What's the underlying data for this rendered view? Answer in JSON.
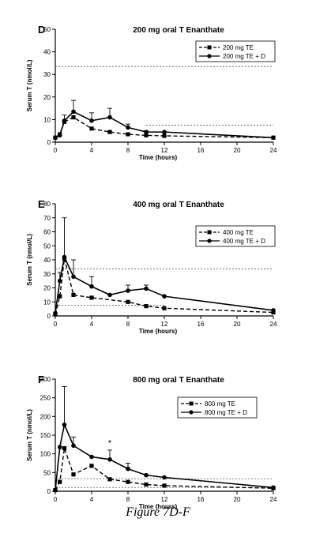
{
  "figure": {
    "caption": "Figure 7D-F"
  },
  "chart_data": [
    {
      "type": "line",
      "panel_letter": "D",
      "title": "200 mg oral T Enanthate",
      "xlabel": "Time (hours)",
      "ylabel": "Serum T (nmol/L)",
      "xlim": [
        0,
        24
      ],
      "ylim": [
        0,
        50
      ],
      "xticks": [
        0,
        4,
        8,
        12,
        16,
        20,
        24
      ],
      "yticks": [
        0,
        10,
        20,
        30,
        40,
        50
      ],
      "legend_position": "top-right",
      "reference_lines": [
        {
          "y": 33.5,
          "x_range": [
            0,
            24
          ]
        },
        {
          "y": 7.5,
          "x_range": [
            10,
            24
          ]
        }
      ],
      "series": [
        {
          "name": "200 mg TE",
          "marker": "square",
          "dash": true,
          "x": [
            0,
            0.5,
            1,
            2,
            4,
            6,
            8,
            10,
            12,
            24
          ],
          "y": [
            2,
            3.5,
            9,
            11,
            6,
            4.5,
            3.5,
            3,
            2.8,
            2
          ]
        },
        {
          "name": "200 mg TE + D",
          "marker": "circle",
          "dash": false,
          "x": [
            0,
            0.5,
            1,
            2,
            4,
            6,
            8,
            10,
            12,
            24
          ],
          "y": [
            2,
            3,
            9.5,
            13.5,
            9.5,
            11,
            6.5,
            4.5,
            4.5,
            2
          ],
          "error_upper": [
            null,
            null,
            12,
            18.5,
            13,
            15,
            8,
            5,
            null,
            null
          ]
        }
      ]
    },
    {
      "type": "line",
      "panel_letter": "E",
      "title": "400 mg oral T Enanthate",
      "xlabel": "Time (hours)",
      "ylabel": "Serum T (nmol/L)",
      "xlim": [
        0,
        24
      ],
      "ylim": [
        0,
        80
      ],
      "xticks": [
        0,
        4,
        8,
        12,
        16,
        20,
        24
      ],
      "yticks": [
        0,
        10,
        20,
        30,
        40,
        50,
        60,
        70,
        80
      ],
      "legend_position": "top-right",
      "reference_lines": [
        {
          "y": 33.5,
          "x_range": [
            0,
            24
          ]
        },
        {
          "y": 7.5,
          "x_range": [
            0,
            12
          ]
        }
      ],
      "series": [
        {
          "name": "400 mg TE",
          "marker": "square",
          "dash": true,
          "x": [
            0,
            0.5,
            1,
            2,
            4,
            8,
            10,
            12,
            24
          ],
          "y": [
            1,
            14,
            41,
            15,
            13,
            10,
            7,
            5.5,
            2.5
          ]
        },
        {
          "name": "400 mg TE + D",
          "marker": "circle",
          "dash": false,
          "x": [
            0,
            0.5,
            1,
            2,
            4,
            6,
            8,
            10,
            12,
            24
          ],
          "y": [
            2,
            25,
            42,
            28,
            21,
            15,
            18,
            19.5,
            14,
            4
          ],
          "error_upper": [
            null,
            31,
            70,
            40,
            28,
            null,
            22,
            22,
            null,
            null
          ]
        }
      ]
    },
    {
      "type": "line",
      "panel_letter": "F",
      "title": "800 mg oral T Enanthate",
      "xlabel": "Time (hours)",
      "ylabel": "Serum T (nmol/L)",
      "xlim": [
        0,
        24
      ],
      "ylim": [
        0,
        300
      ],
      "xticks": [
        0,
        4,
        8,
        12,
        16,
        20,
        24
      ],
      "yticks": [
        0,
        50,
        100,
        150,
        200,
        250,
        300
      ],
      "legend_position": "top-right",
      "annotations": [
        {
          "text": "*",
          "x": 6,
          "y": 130
        }
      ],
      "reference_lines": [
        {
          "y": 33.5,
          "x_range": [
            0,
            24
          ]
        },
        {
          "y": 10,
          "x_range": [
            0,
            24
          ]
        }
      ],
      "series": [
        {
          "name": "800 mg TE",
          "marker": "square",
          "dash": true,
          "x": [
            0,
            0.5,
            1,
            2,
            4,
            6,
            8,
            10,
            12,
            24
          ],
          "y": [
            3,
            25,
            115,
            45,
            68,
            32,
            25,
            18,
            15,
            8
          ]
        },
        {
          "name": "800 mg TE + D",
          "marker": "circle",
          "dash": false,
          "x": [
            0,
            0.5,
            1,
            2,
            4,
            6,
            8,
            10,
            12,
            24
          ],
          "y": [
            3,
            118,
            178,
            122,
            92,
            85,
            60,
            43,
            37,
            10
          ],
          "error_upper": [
            null,
            null,
            280,
            145,
            null,
            110,
            75,
            null,
            null,
            null
          ]
        }
      ]
    }
  ]
}
